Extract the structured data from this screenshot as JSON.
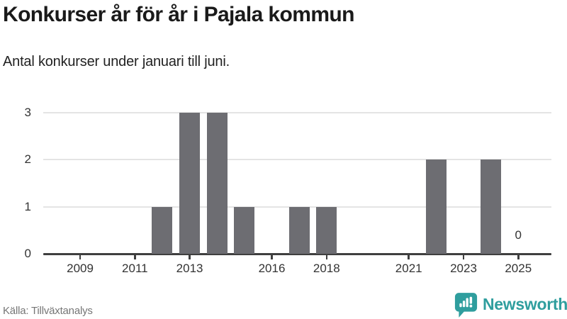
{
  "header": {
    "title": "Konkurser år för år i Pajala kommun",
    "subtitle": "Antal konkurser under januari till juni."
  },
  "chart_data": {
    "type": "bar",
    "title": "Konkurser år för år i Pajala kommun",
    "subtitle": "Antal konkurser under januari till juni.",
    "categories": [
      2008,
      2009,
      2010,
      2011,
      2012,
      2013,
      2014,
      2015,
      2016,
      2017,
      2018,
      2019,
      2020,
      2021,
      2022,
      2023,
      2024,
      2025
    ],
    "values": [
      0,
      0,
      0,
      0,
      1,
      3,
      3,
      1,
      0,
      1,
      1,
      0,
      0,
      0,
      2,
      0,
      2,
      0
    ],
    "xlabel": "",
    "ylabel": "",
    "ylim": [
      0,
      3
    ],
    "yticks": [
      0,
      1,
      2,
      3
    ],
    "xtick_labels": [
      "2009",
      "2011",
      "2013",
      "2016",
      "2018",
      "2021",
      "2023",
      "2025"
    ],
    "grid": "horizontal-only",
    "legend": "none",
    "annotations": [
      {
        "category": 2025,
        "text": "0"
      }
    ],
    "colors": {
      "bar": "#6d6d72",
      "gridline": "#e4e4e4",
      "axis_line": "#3f3f3f",
      "tick_text": "#333333"
    }
  },
  "footer": {
    "source": "Källa: Tillväxtanalys",
    "brand": "Newsworthy",
    "brand_color": "#2f9e9e"
  }
}
